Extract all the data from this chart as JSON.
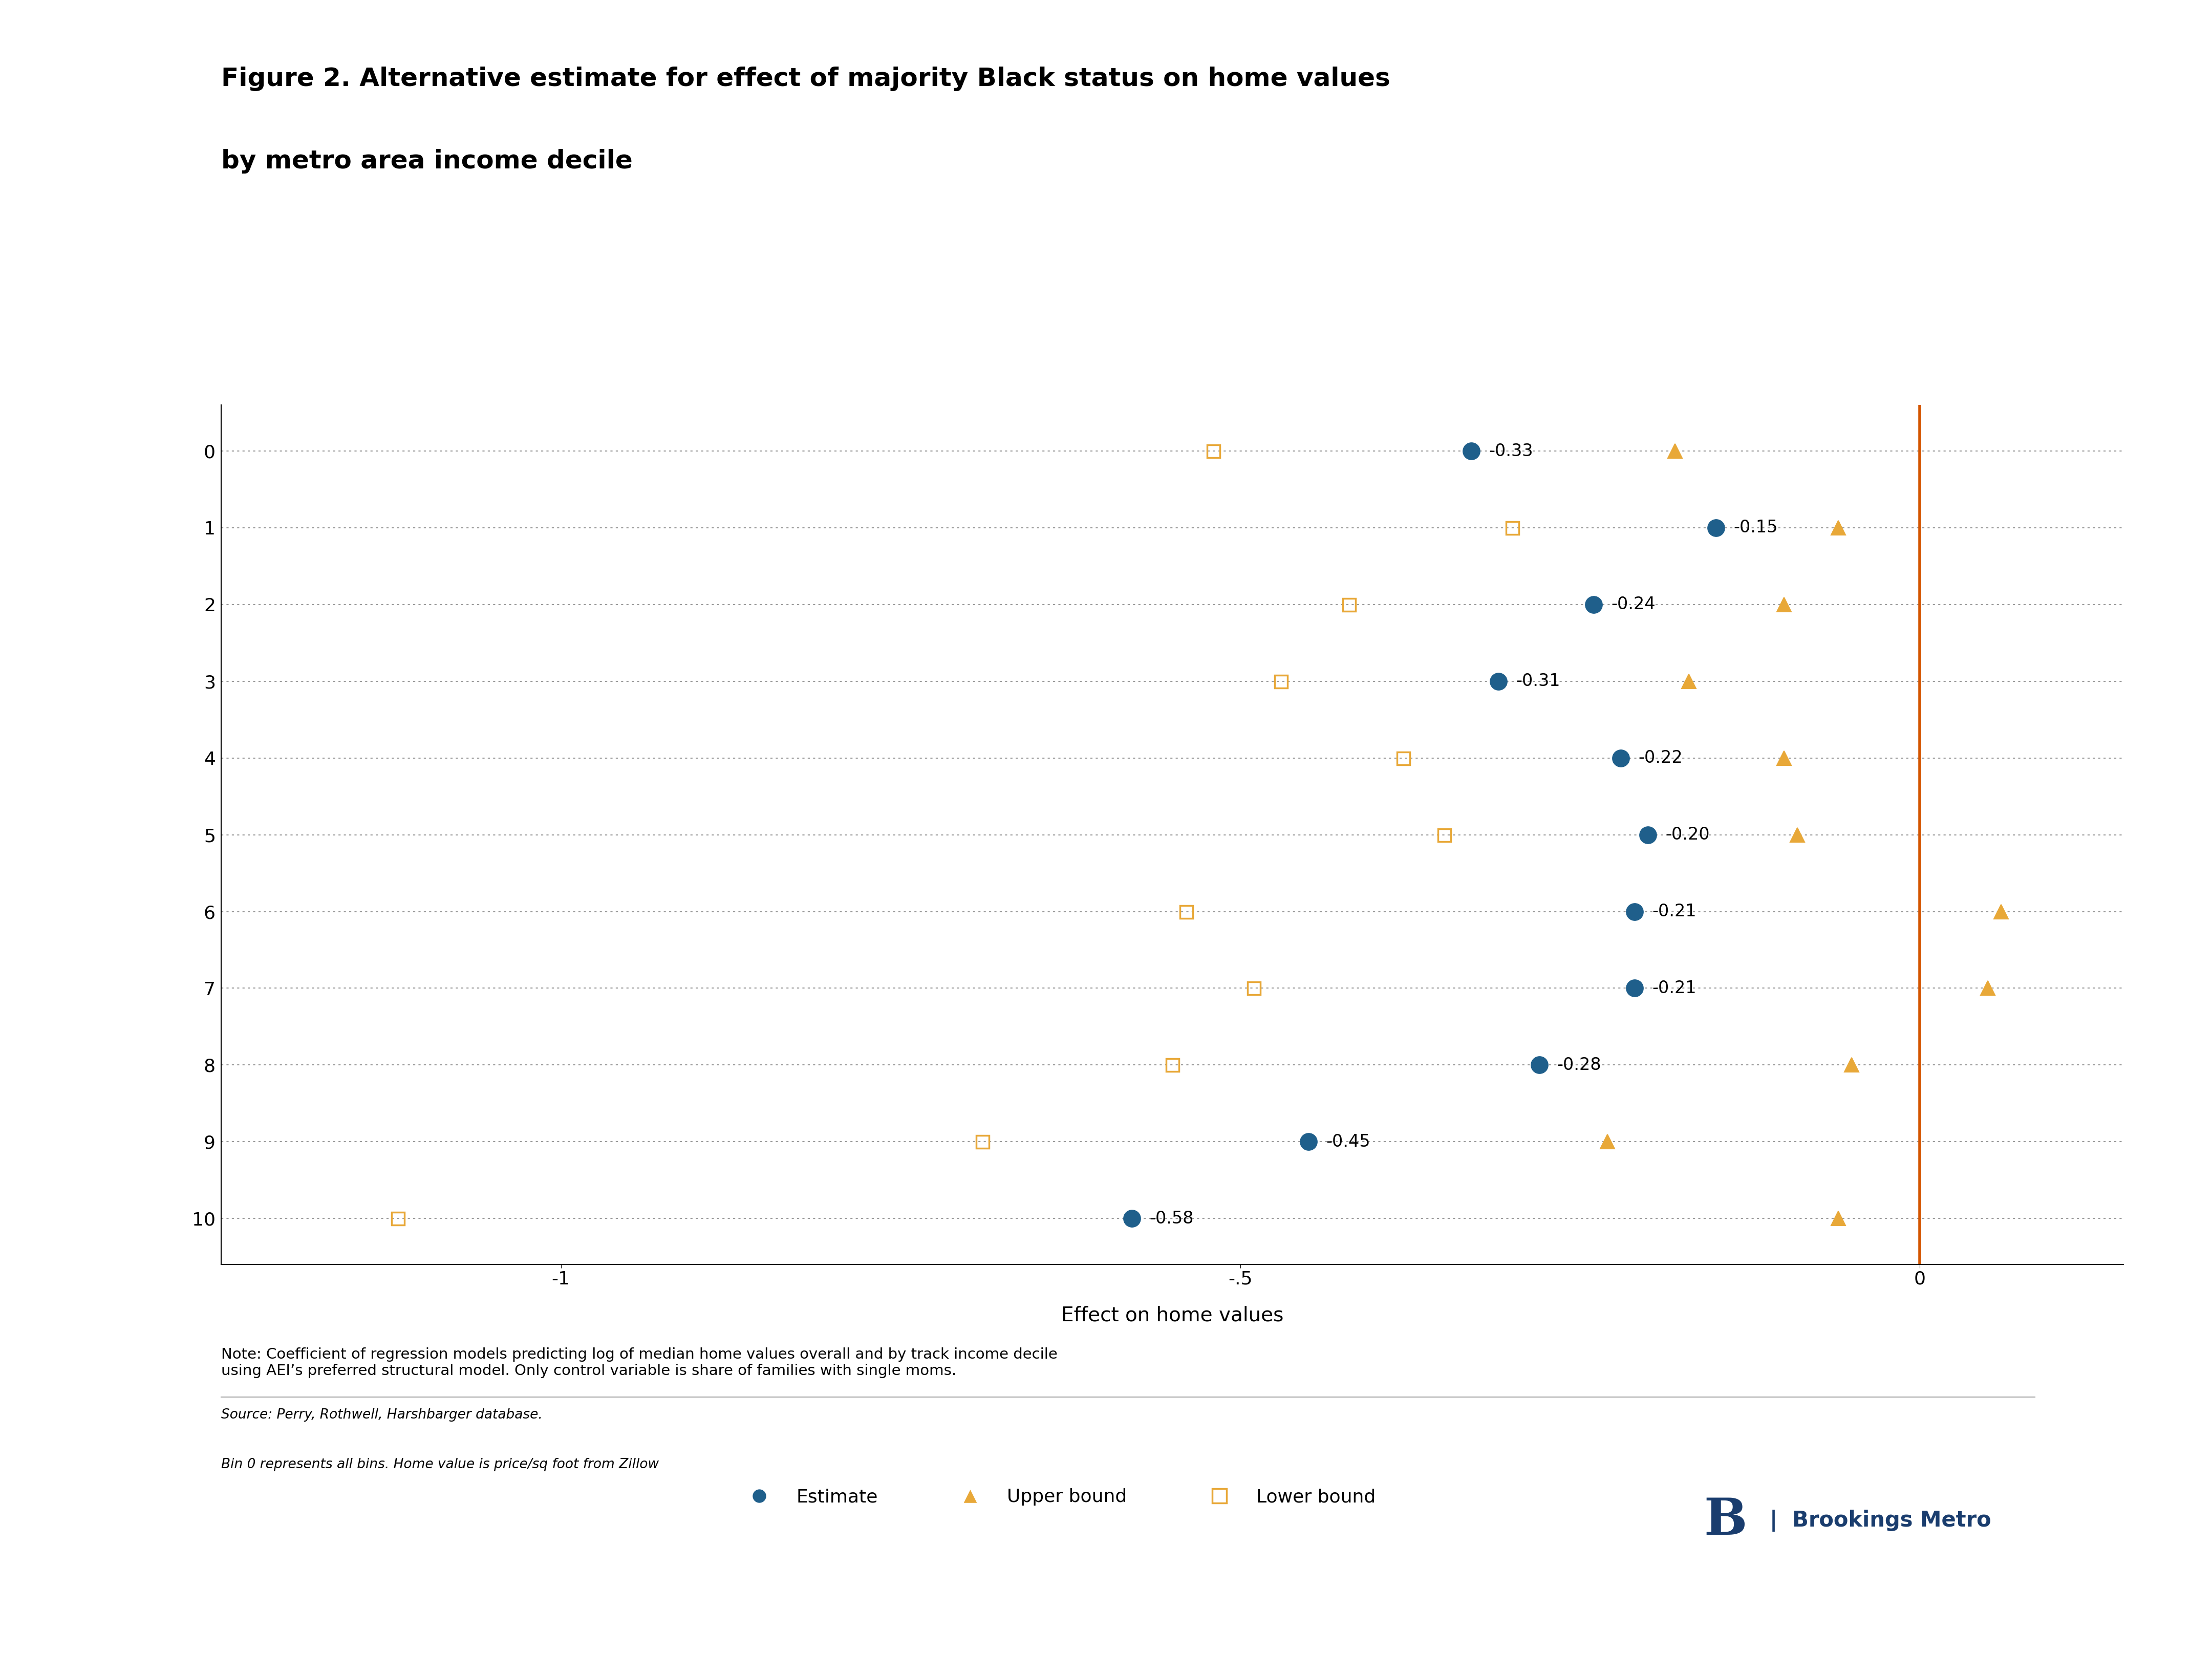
{
  "title_line1": "Figure 2. Alternative estimate for effect of majority Black status on home values",
  "title_line2": "by metro area income decile",
  "xlabel": "Effect on home values",
  "deciles": [
    0,
    1,
    2,
    3,
    4,
    5,
    6,
    7,
    8,
    9,
    10
  ],
  "estimates": [
    -0.33,
    -0.15,
    -0.24,
    -0.31,
    -0.22,
    -0.2,
    -0.21,
    -0.21,
    -0.28,
    -0.45,
    -0.58
  ],
  "upper_bounds": [
    -0.18,
    -0.06,
    -0.1,
    -0.17,
    -0.1,
    -0.09,
    0.06,
    0.05,
    -0.05,
    -0.23,
    -0.06
  ],
  "lower_bounds": [
    -0.52,
    -0.3,
    -0.42,
    -0.47,
    -0.38,
    -0.35,
    -0.54,
    -0.49,
    -0.55,
    -0.69,
    -1.12
  ],
  "estimate_color": "#1f5f8b",
  "bound_color": "#e8a838",
  "vline_color": "#d45500",
  "background_color": "#ffffff",
  "xlim": [
    -1.25,
    0.15
  ],
  "xticks": [
    -1.0,
    -0.5,
    0.0
  ],
  "xticklabels": [
    "-1",
    "-.5",
    "0"
  ],
  "note_text": "Note: Coefficient of regression models predicting log of median home values overall and by track income decile\nusing AEI’s preferred structural model. Only control variable is share of families with single moms.",
  "source_line1": "Source: Perry, Rothwell, Harshbarger database.",
  "source_line2": "Bin 0 represents all bins. Home value is price/sq foot from Zillow",
  "brookings_color": "#1a3d6e"
}
